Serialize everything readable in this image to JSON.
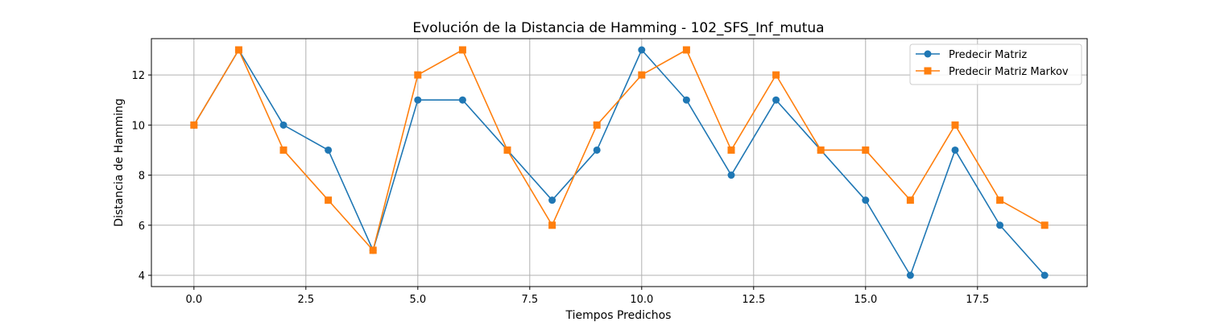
{
  "chart_data": {
    "type": "line",
    "title": "Evolución de la Distancia de Hamming - 102_SFS_Inf_mutua",
    "xlabel": "Tiempos Predichos",
    "ylabel": "Distancia de Hamming",
    "x": [
      0,
      1,
      2,
      3,
      4,
      5,
      6,
      7,
      8,
      9,
      10,
      11,
      12,
      13,
      14,
      15,
      16,
      17,
      18,
      19
    ],
    "xlim": [
      -0.95,
      19.95
    ],
    "ylim": [
      3.55,
      13.45
    ],
    "xticks": [
      0.0,
      2.5,
      5.0,
      7.5,
      10.0,
      12.5,
      15.0,
      17.5
    ],
    "xtick_labels": [
      "0.0",
      "2.5",
      "5.0",
      "7.5",
      "10.0",
      "12.5",
      "15.0",
      "17.5"
    ],
    "yticks": [
      4,
      6,
      8,
      10,
      12
    ],
    "ytick_labels": [
      "4",
      "6",
      "8",
      "10",
      "12"
    ],
    "grid": true,
    "legend_position": "top-right",
    "series": [
      {
        "name": "Predecir Matriz",
        "color": "#1f77b4",
        "marker": "circle",
        "values": [
          10,
          13,
          10,
          9,
          5,
          11,
          11,
          9,
          7,
          9,
          13,
          11,
          8,
          11,
          9,
          7,
          4,
          9,
          6,
          4
        ]
      },
      {
        "name": "Predecir Matriz Markov",
        "color": "#ff7f0e",
        "marker": "square",
        "values": [
          10,
          13,
          9,
          7,
          5,
          12,
          13,
          9,
          6,
          10,
          12,
          13,
          9,
          12,
          9,
          9,
          7,
          10,
          7,
          6
        ]
      }
    ]
  }
}
